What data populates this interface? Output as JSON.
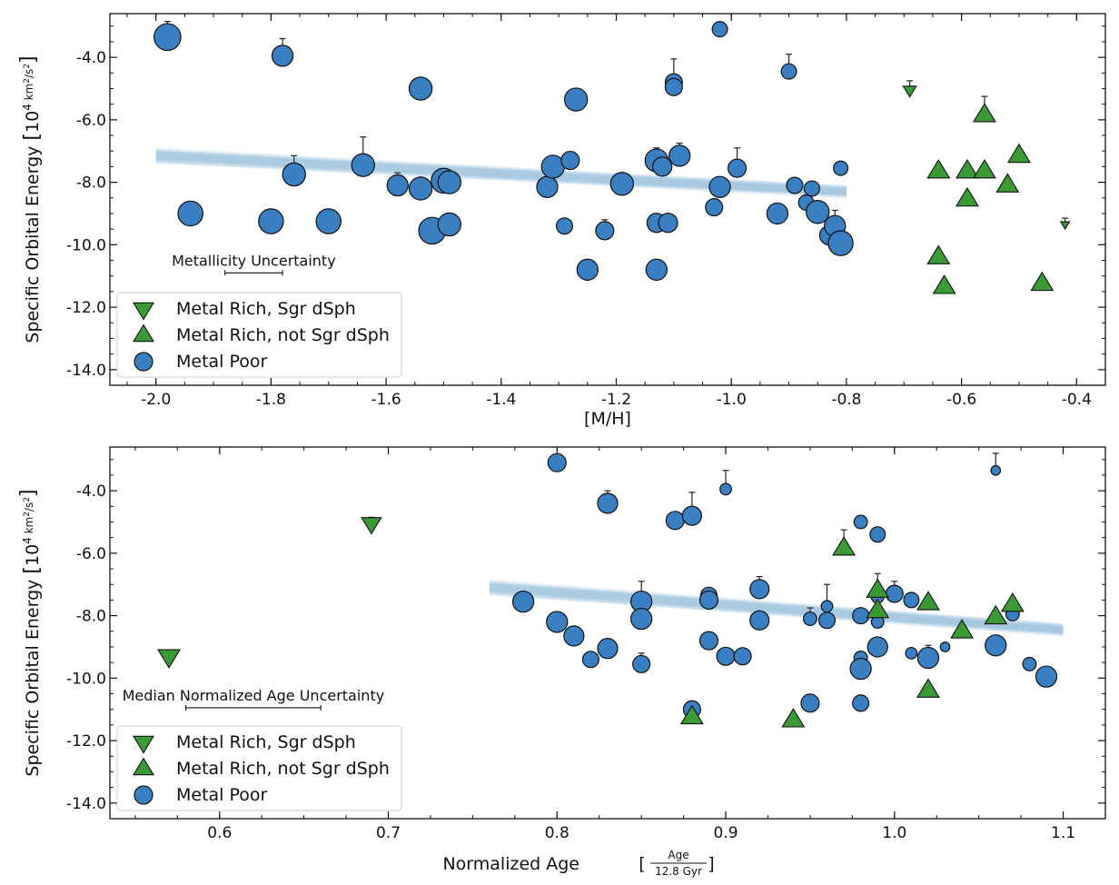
{
  "colors": {
    "metal_poor": "#3a7fc1",
    "metal_rich": "#3c9a36",
    "fit_band": "#9cc4df",
    "edge": "#111111"
  },
  "chart_data": [
    {
      "type": "scatter",
      "xlabel": "[M/H]",
      "ylabel": "Specific Orbital Energy",
      "ylabel_unit_prefix": "10",
      "ylabel_unit_exp": "4",
      "ylabel_unit_num": "km",
      "ylabel_unit_num_exp": "2",
      "ylabel_unit_den": "s",
      "ylabel_unit_den_exp": "2",
      "xlim": [
        -2.08,
        -0.35
      ],
      "ylim": [
        -14.5,
        -2.6
      ],
      "xticks": [
        -2.0,
        -1.8,
        -1.6,
        -1.4,
        -1.2,
        -1.0,
        -0.8,
        -0.6,
        -0.4
      ],
      "xtick_labels": [
        "-2.0",
        "-1.8",
        "-1.6",
        "-1.4",
        "-1.2",
        "-1.0",
        "-0.8",
        "-0.6",
        "-0.4"
      ],
      "yticks": [
        -14,
        -12,
        -10,
        -8,
        -6,
        -4
      ],
      "ytick_labels": [
        "-14.0",
        "-12.0",
        "-10.0",
        "-8.0",
        "-6.0",
        "-4.0"
      ],
      "fit": {
        "x_range": [
          -2.0,
          -0.8
        ],
        "y_start": -7.15,
        "y_end": -8.3
      },
      "uncertainty": {
        "label": "Metallicity Uncertainty",
        "x": [
          -1.88,
          -1.78
        ],
        "y": -10.9
      },
      "legend": {
        "placement": "lower-left",
        "entries": [
          {
            "label": "Metal Rich, Sgr dSph",
            "marker": "tri-down",
            "color": "metal_rich"
          },
          {
            "label": "Metal Rich, not Sgr dSph",
            "marker": "tri-up",
            "color": "metal_rich"
          },
          {
            "label": "Metal Poor",
            "marker": "circle",
            "color": "metal_poor"
          }
        ]
      },
      "series": [
        {
          "name": "Metal Poor",
          "marker": "circle",
          "points": [
            {
              "x": -1.98,
              "y": -3.35,
              "s": 1.4,
              "err": 0.5
            },
            {
              "x": -1.94,
              "y": -9.0,
              "s": 1.3
            },
            {
              "x": -1.78,
              "y": -3.95,
              "s": 1.1,
              "err": 0.55
            },
            {
              "x": -1.76,
              "y": -7.75,
              "s": 1.2,
              "err": 0.6
            },
            {
              "x": -1.8,
              "y": -9.25,
              "s": 1.3
            },
            {
              "x": -1.7,
              "y": -9.25,
              "s": 1.3
            },
            {
              "x": -1.64,
              "y": -7.45,
              "s": 1.2,
              "err": 0.9
            },
            {
              "x": -1.58,
              "y": -8.1,
              "s": 1.1,
              "err": 0.4
            },
            {
              "x": -1.54,
              "y": -5.0,
              "s": 1.2
            },
            {
              "x": -1.54,
              "y": -8.2,
              "s": 1.2
            },
            {
              "x": -1.52,
              "y": -9.55,
              "s": 1.4
            },
            {
              "x": -1.5,
              "y": -7.95,
              "s": 1.3
            },
            {
              "x": -1.49,
              "y": -8.0,
              "s": 1.2
            },
            {
              "x": -1.49,
              "y": -9.35,
              "s": 1.2
            },
            {
              "x": -1.32,
              "y": -8.15,
              "s": 1.1
            },
            {
              "x": -1.31,
              "y": -7.5,
              "s": 1.2
            },
            {
              "x": -1.29,
              "y": -9.4,
              "s": 0.85
            },
            {
              "x": -1.28,
              "y": -7.3,
              "s": 0.95
            },
            {
              "x": -1.27,
              "y": -5.35,
              "s": 1.2
            },
            {
              "x": -1.25,
              "y": -10.8,
              "s": 1.1
            },
            {
              "x": -1.22,
              "y": -9.55,
              "s": 0.95,
              "err": 0.35
            },
            {
              "x": -1.19,
              "y": -8.05,
              "s": 1.2
            },
            {
              "x": -1.13,
              "y": -7.3,
              "s": 1.2,
              "err": 0.4
            },
            {
              "x": -1.12,
              "y": -7.5,
              "s": 1.0
            },
            {
              "x": -1.13,
              "y": -9.3,
              "s": 1.0
            },
            {
              "x": -1.11,
              "y": -9.3,
              "s": 1.0
            },
            {
              "x": -1.13,
              "y": -10.8,
              "s": 1.1
            },
            {
              "x": -1.1,
              "y": -4.8,
              "s": 0.9,
              "err": 0.75
            },
            {
              "x": -1.1,
              "y": -4.95,
              "s": 0.9
            },
            {
              "x": -1.09,
              "y": -7.15,
              "s": 1.1,
              "err": 0.4
            },
            {
              "x": -1.03,
              "y": -8.8,
              "s": 0.9
            },
            {
              "x": -1.02,
              "y": -3.1,
              "s": 0.8
            },
            {
              "x": -1.02,
              "y": -8.15,
              "s": 1.1
            },
            {
              "x": -0.99,
              "y": -7.55,
              "s": 0.95,
              "err": 0.65
            },
            {
              "x": -0.92,
              "y": -9.0,
              "s": 1.1
            },
            {
              "x": -0.9,
              "y": -4.45,
              "s": 0.8,
              "err": 0.55
            },
            {
              "x": -0.89,
              "y": -8.1,
              "s": 0.85
            },
            {
              "x": -0.87,
              "y": -8.65,
              "s": 0.8
            },
            {
              "x": -0.86,
              "y": -8.2,
              "s": 0.8
            },
            {
              "x": -0.85,
              "y": -8.95,
              "s": 1.2
            },
            {
              "x": -0.83,
              "y": -9.7,
              "s": 1.0
            },
            {
              "x": -0.81,
              "y": -7.55,
              "s": 0.75
            },
            {
              "x": -0.82,
              "y": -9.4,
              "s": 1.1,
              "err": 0.5
            },
            {
              "x": -0.81,
              "y": -9.95,
              "s": 1.3
            }
          ]
        },
        {
          "name": "Metal Rich, not Sgr dSph",
          "marker": "tri-up",
          "points": [
            {
              "x": -0.64,
              "y": -7.65
            },
            {
              "x": -0.64,
              "y": -10.4
            },
            {
              "x": -0.63,
              "y": -11.35
            },
            {
              "x": -0.59,
              "y": -7.65
            },
            {
              "x": -0.59,
              "y": -8.55
            },
            {
              "x": -0.56,
              "y": -5.85,
              "err": 0.6
            },
            {
              "x": -0.56,
              "y": -7.65
            },
            {
              "x": -0.52,
              "y": -8.1
            },
            {
              "x": -0.5,
              "y": -7.15
            },
            {
              "x": -0.46,
              "y": -11.25
            }
          ]
        },
        {
          "name": "Metal Rich, Sgr dSph",
          "marker": "tri-down",
          "points": [
            {
              "x": -0.69,
              "y": -5.05,
              "s": 0.6,
              "err": 0.3
            },
            {
              "x": -0.42,
              "y": -9.35,
              "s": 0.4,
              "err": 0.2
            }
          ]
        }
      ]
    },
    {
      "type": "scatter",
      "xlabel": "Normalized Age",
      "xlabel_frac_num": "Age",
      "xlabel_frac_den": "12.8 Gyr",
      "ylabel": "Specific Orbital Energy",
      "ylabel_unit_prefix": "10",
      "ylabel_unit_exp": "4",
      "ylabel_unit_num": "km",
      "ylabel_unit_num_exp": "2",
      "ylabel_unit_den": "s",
      "ylabel_unit_den_exp": "2",
      "xlim": [
        0.535,
        1.125
      ],
      "ylim": [
        -14.5,
        -2.6
      ],
      "xticks": [
        0.6,
        0.7,
        0.8,
        0.9,
        1.0,
        1.1
      ],
      "xtick_labels": [
        "0.6",
        "0.7",
        "0.8",
        "0.9",
        "1.0",
        "1.1"
      ],
      "yticks": [
        -14,
        -12,
        -10,
        -8,
        -6,
        -4
      ],
      "ytick_labels": [
        "-14.0",
        "-12.0",
        "-10.0",
        "-8.0",
        "-6.0",
        "-4.0"
      ],
      "fit": {
        "x_range": [
          0.76,
          1.1
        ],
        "y_start": -7.1,
        "y_end": -8.45
      },
      "uncertainty": {
        "label": "Median Normalized Age Uncertainty",
        "x": [
          0.58,
          0.66
        ],
        "y": -10.95
      },
      "legend": {
        "placement": "lower-left",
        "entries": [
          {
            "label": "Metal Rich, Sgr dSph",
            "marker": "tri-down",
            "color": "metal_rich"
          },
          {
            "label": "Metal Rich, not Sgr dSph",
            "marker": "tri-up",
            "color": "metal_rich"
          },
          {
            "label": "Metal Poor",
            "marker": "circle",
            "color": "metal_poor"
          }
        ]
      },
      "series": [
        {
          "name": "Metal Poor",
          "marker": "circle",
          "points": [
            {
              "x": 0.8,
              "y": -3.1,
              "s": 0.95
            },
            {
              "x": 0.83,
              "y": -4.4,
              "s": 1.05,
              "err": 0.4
            },
            {
              "x": 0.87,
              "y": -4.95,
              "s": 0.95
            },
            {
              "x": 0.88,
              "y": -4.8,
              "s": 1.0,
              "err": 0.75
            },
            {
              "x": 0.9,
              "y": -3.95,
              "s": 0.6,
              "err": 0.6
            },
            {
              "x": 1.06,
              "y": -3.35,
              "s": 0.5,
              "err": 0.55
            },
            {
              "x": 0.78,
              "y": -7.55,
              "s": 1.1
            },
            {
              "x": 0.8,
              "y": -8.2,
              "s": 1.1
            },
            {
              "x": 0.81,
              "y": -8.65,
              "s": 1.05
            },
            {
              "x": 0.82,
              "y": -9.4,
              "s": 0.85
            },
            {
              "x": 0.83,
              "y": -9.05,
              "s": 1.05
            },
            {
              "x": 0.85,
              "y": -7.55,
              "s": 1.1,
              "err": 0.65
            },
            {
              "x": 0.85,
              "y": -8.1,
              "s": 1.1
            },
            {
              "x": 0.85,
              "y": -9.55,
              "s": 0.9,
              "err": 0.35
            },
            {
              "x": 0.88,
              "y": -11.0,
              "s": 0.9
            },
            {
              "x": 0.89,
              "y": -7.35,
              "s": 0.85
            },
            {
              "x": 0.89,
              "y": -7.5,
              "s": 0.95
            },
            {
              "x": 0.89,
              "y": -8.8,
              "s": 0.95
            },
            {
              "x": 0.9,
              "y": -9.3,
              "s": 0.95
            },
            {
              "x": 0.91,
              "y": -9.3,
              "s": 0.9
            },
            {
              "x": 0.92,
              "y": -7.15,
              "s": 1.0,
              "err": 0.4
            },
            {
              "x": 0.92,
              "y": -8.15,
              "s": 1.0
            },
            {
              "x": 0.95,
              "y": -10.8,
              "s": 0.95
            },
            {
              "x": 0.95,
              "y": -8.1,
              "s": 0.7,
              "err": 0.35
            },
            {
              "x": 0.96,
              "y": -7.7,
              "s": 0.6,
              "err": 0.7
            },
            {
              "x": 0.96,
              "y": -8.15,
              "s": 0.85
            },
            {
              "x": 0.98,
              "y": -5.0,
              "s": 0.7
            },
            {
              "x": 0.99,
              "y": -5.4,
              "s": 0.8
            },
            {
              "x": 0.98,
              "y": -8.0,
              "s": 0.85
            },
            {
              "x": 0.98,
              "y": -9.35,
              "s": 0.7
            },
            {
              "x": 0.98,
              "y": -9.7,
              "s": 1.1
            },
            {
              "x": 0.98,
              "y": -10.8,
              "s": 0.85
            },
            {
              "x": 0.99,
              "y": -7.4,
              "s": 0.65
            },
            {
              "x": 0.99,
              "y": -8.2,
              "s": 0.65
            },
            {
              "x": 0.99,
              "y": -9.0,
              "s": 1.05
            },
            {
              "x": 1.0,
              "y": -7.3,
              "s": 0.9,
              "err": 0.4
            },
            {
              "x": 1.01,
              "y": -7.5,
              "s": 0.8
            },
            {
              "x": 1.01,
              "y": -9.2,
              "s": 0.6
            },
            {
              "x": 1.02,
              "y": -9.35,
              "s": 1.1,
              "err": 0.4
            },
            {
              "x": 1.03,
              "y": -9.0,
              "s": 0.5
            },
            {
              "x": 1.06,
              "y": -8.95,
              "s": 1.1
            },
            {
              "x": 1.07,
              "y": -7.95,
              "s": 0.7
            },
            {
              "x": 1.08,
              "y": -9.55,
              "s": 0.7
            },
            {
              "x": 1.09,
              "y": -9.95,
              "s": 1.1
            }
          ]
        },
        {
          "name": "Metal Rich, not Sgr dSph",
          "marker": "tri-up",
          "points": [
            {
              "x": 0.88,
              "y": -11.25
            },
            {
              "x": 0.94,
              "y": -11.35
            },
            {
              "x": 0.97,
              "y": -5.85,
              "err": 0.6
            },
            {
              "x": 0.99,
              "y": -7.2,
              "err": 0.55
            },
            {
              "x": 0.99,
              "y": -7.85
            },
            {
              "x": 1.02,
              "y": -7.6
            },
            {
              "x": 1.02,
              "y": -10.4
            },
            {
              "x": 1.04,
              "y": -8.5
            },
            {
              "x": 1.06,
              "y": -8.05
            },
            {
              "x": 1.07,
              "y": -7.65
            }
          ]
        },
        {
          "name": "Metal Rich, Sgr dSph",
          "marker": "tri-down",
          "points": [
            {
              "x": 0.57,
              "y": -9.3,
              "s": 1.0
            },
            {
              "x": 0.69,
              "y": -5.05,
              "s": 0.9,
              "err": 0.2
            }
          ]
        }
      ]
    }
  ]
}
